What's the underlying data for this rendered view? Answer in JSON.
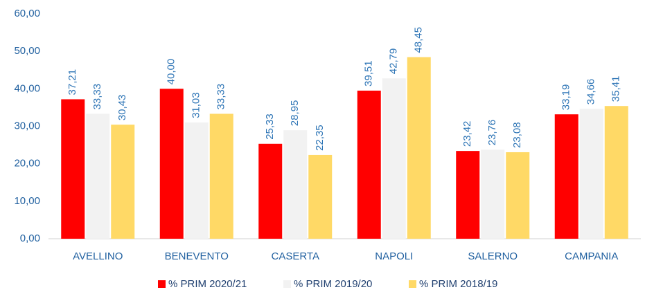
{
  "chart_data": {
    "type": "bar",
    "categories": [
      "AVELLINO",
      "BENEVENTO",
      "CASERTA",
      "NAPOLI",
      "SALERNO",
      "CAMPANIA"
    ],
    "series": [
      {
        "name": "% PRIM 2020/21",
        "color": "#ff0000",
        "values": [
          37.21,
          40.0,
          25.33,
          39.51,
          23.42,
          33.19
        ],
        "value_labels": [
          "37,21",
          "40,00",
          "25,33",
          "39,51",
          "23,42",
          "33,19"
        ]
      },
      {
        "name": "% PRIM 2019/20",
        "color": "#f2f2f2",
        "values": [
          33.33,
          31.03,
          28.95,
          42.79,
          23.76,
          34.66
        ],
        "value_labels": [
          "33,33",
          "31,03",
          "28,95",
          "42,79",
          "23,76",
          "34,66"
        ]
      },
      {
        "name": "% PRIM 2018/19",
        "color": "#ffd966",
        "values": [
          30.43,
          33.33,
          22.35,
          48.45,
          23.08,
          35.41
        ],
        "value_labels": [
          "30,43",
          "33,33",
          "22,35",
          "48,45",
          "23,08",
          "35,41"
        ]
      }
    ],
    "ylim": [
      0,
      60
    ],
    "yticks": [
      {
        "value": 0,
        "label": "0,00"
      },
      {
        "value": 10,
        "label": "10,00"
      },
      {
        "value": 20,
        "label": "20,00"
      },
      {
        "value": 30,
        "label": "30,00"
      },
      {
        "value": 40,
        "label": "40,00"
      },
      {
        "value": 50,
        "label": "50,00"
      },
      {
        "value": 60,
        "label": "60,00"
      }
    ],
    "grid": false,
    "legend": "bottom"
  }
}
